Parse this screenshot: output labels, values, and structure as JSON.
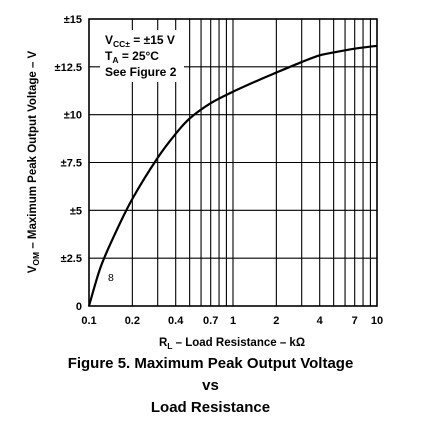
{
  "chart_data": {
    "type": "line",
    "x_scale": "log",
    "xlim": [
      0.1,
      10
    ],
    "ylim": [
      0,
      15
    ],
    "grid": true,
    "x_ticks": [
      "0.1",
      "0.2",
      "0.4",
      "0.7",
      "1",
      "2",
      "4",
      "7",
      "10"
    ],
    "y_ticks": [
      "0",
      "±2.5",
      "±5",
      "±7.5",
      "±10",
      "±12.5",
      "±15"
    ],
    "xlabel": {
      "main": "R",
      "sub": "L",
      "rest": " – Load Resistance – kΩ"
    },
    "ylabel": {
      "main": "V",
      "sub": "OM",
      "rest": " – Maximum Peak Output Voltage – V"
    },
    "conditions": {
      "line1": {
        "main": "V",
        "sub": "CC±",
        "rest": " = ±15 V"
      },
      "line2": {
        "main": "T",
        "sub": "A",
        "rest": " = 25°C"
      },
      "line3": "See Figure 2"
    },
    "annotation": "8",
    "series": [
      {
        "x": [
          0.1,
          0.12,
          0.15,
          0.2,
          0.3,
          0.4,
          0.5,
          0.7,
          1,
          1.5,
          2,
          3,
          4,
          5,
          7,
          10
        ],
        "y": [
          0.0,
          2.0,
          3.7,
          5.6,
          7.75,
          9.0,
          9.8,
          10.6,
          11.2,
          11.8,
          12.2,
          12.75,
          13.1,
          13.25,
          13.45,
          13.6
        ]
      }
    ]
  },
  "caption": {
    "line1": "Figure 5. Maximum Peak Output Voltage",
    "line2": "vs",
    "line3": "Load Resistance"
  }
}
